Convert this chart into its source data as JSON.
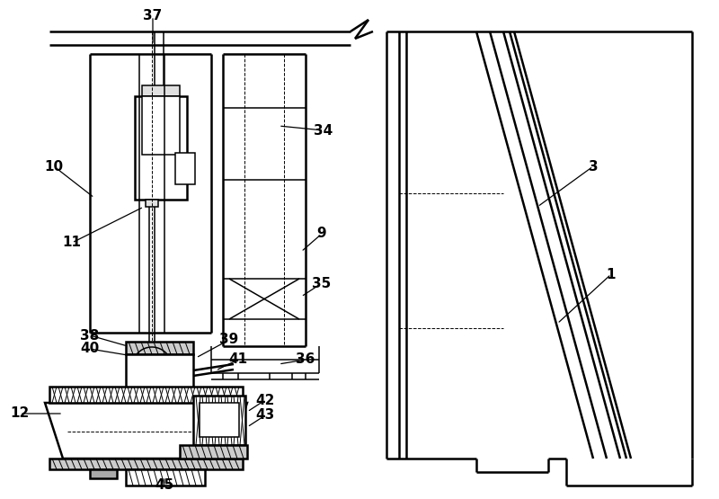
{
  "bg_color": "#ffffff",
  "lc": "#000000",
  "lw1": 1.8,
  "lw2": 1.1,
  "lw3": 0.7,
  "fig_w": 8.0,
  "fig_h": 5.55,
  "dpi": 100
}
